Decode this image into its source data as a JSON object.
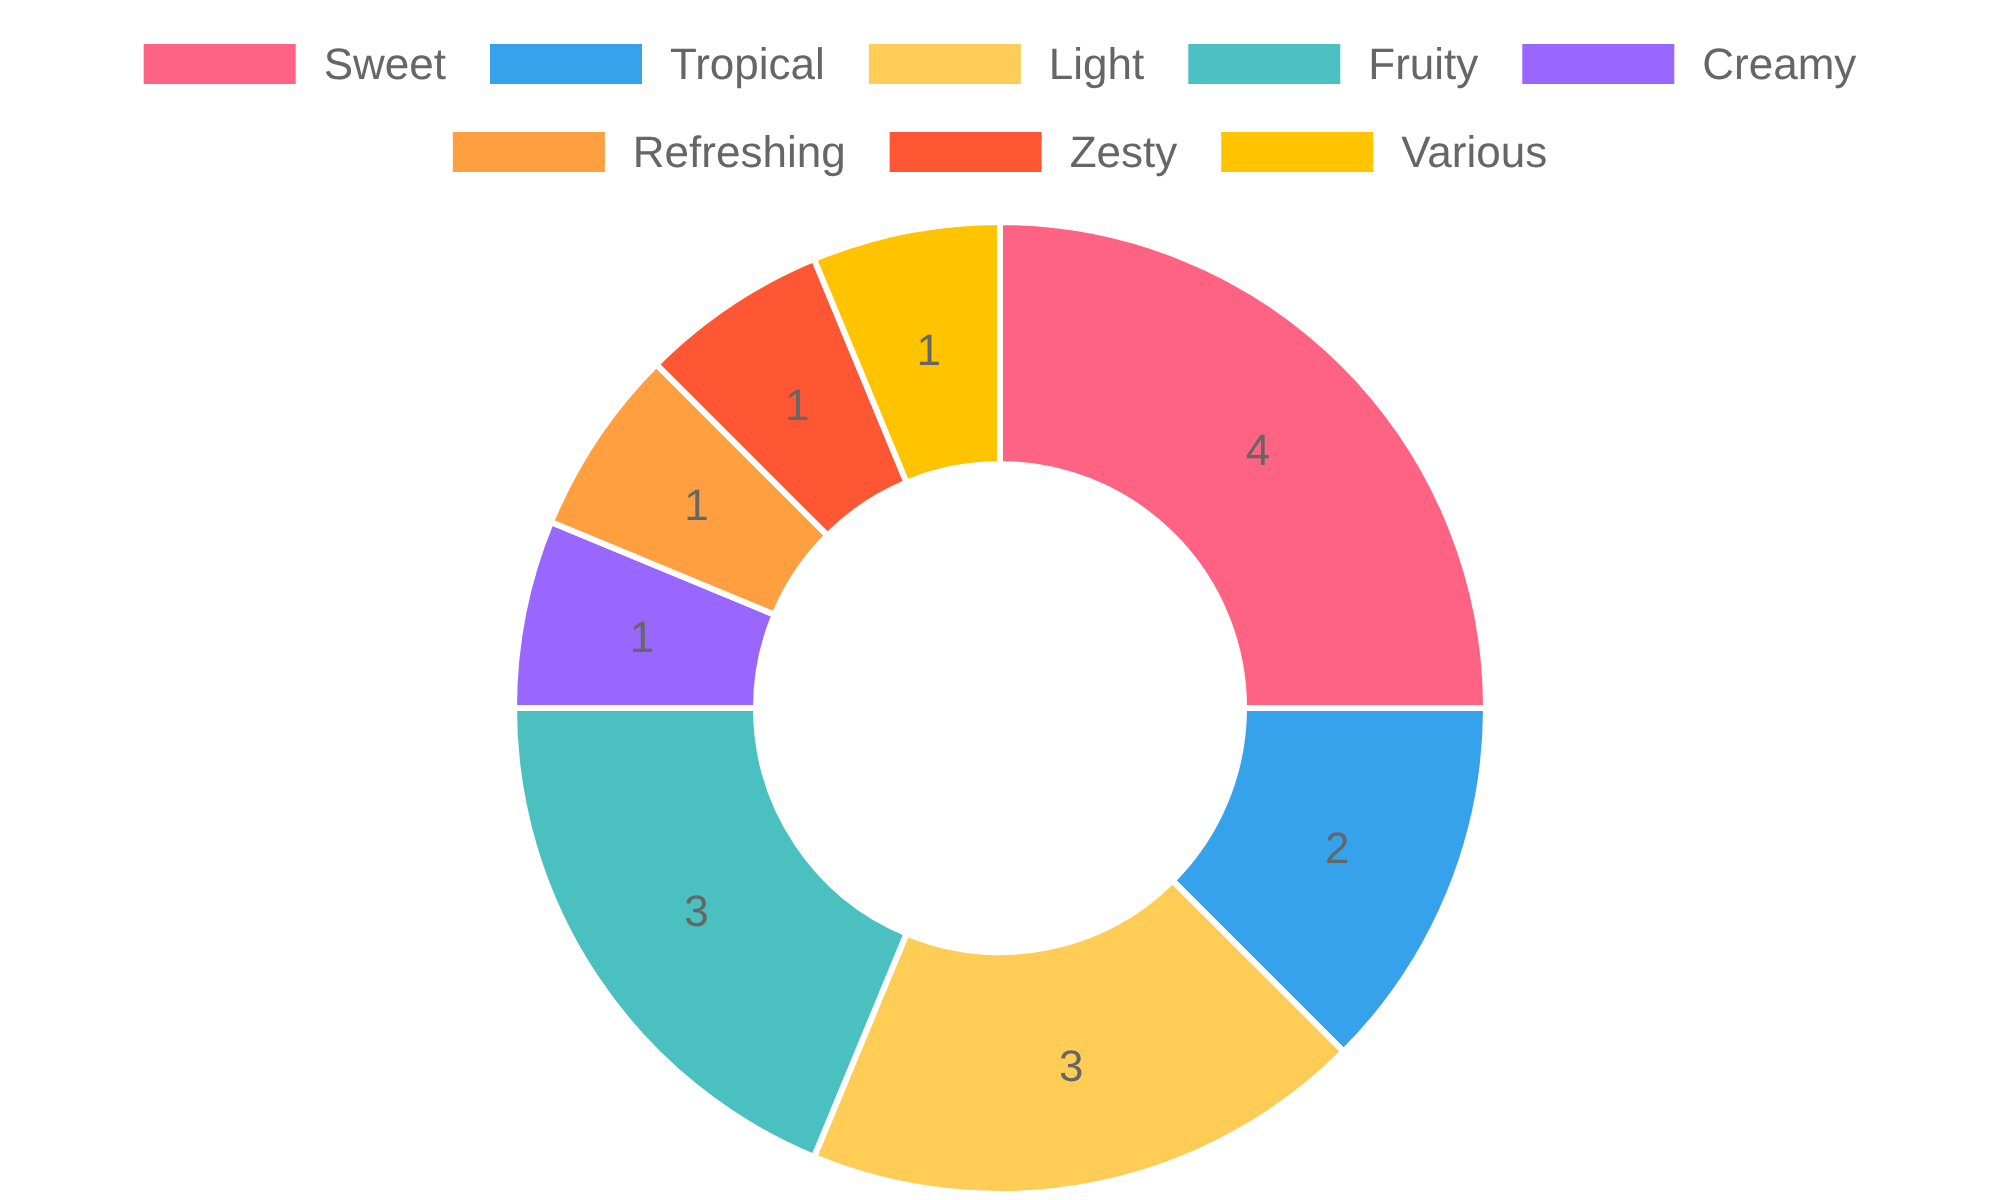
{
  "chart_data": {
    "type": "donut",
    "categories": [
      "Sweet",
      "Tropical",
      "Light",
      "Fruity",
      "Creamy",
      "Refreshing",
      "Zesty",
      "Various"
    ],
    "values": [
      4,
      2,
      3,
      3,
      1,
      1,
      1,
      1
    ],
    "colors": [
      "#ff6384",
      "#36a2eb",
      "#ffcd56",
      "#4bc0c0",
      "#9966ff",
      "#ff9f40",
      "#ff5733",
      "#ffc300"
    ],
    "data_labels": true,
    "legend": "top"
  }
}
